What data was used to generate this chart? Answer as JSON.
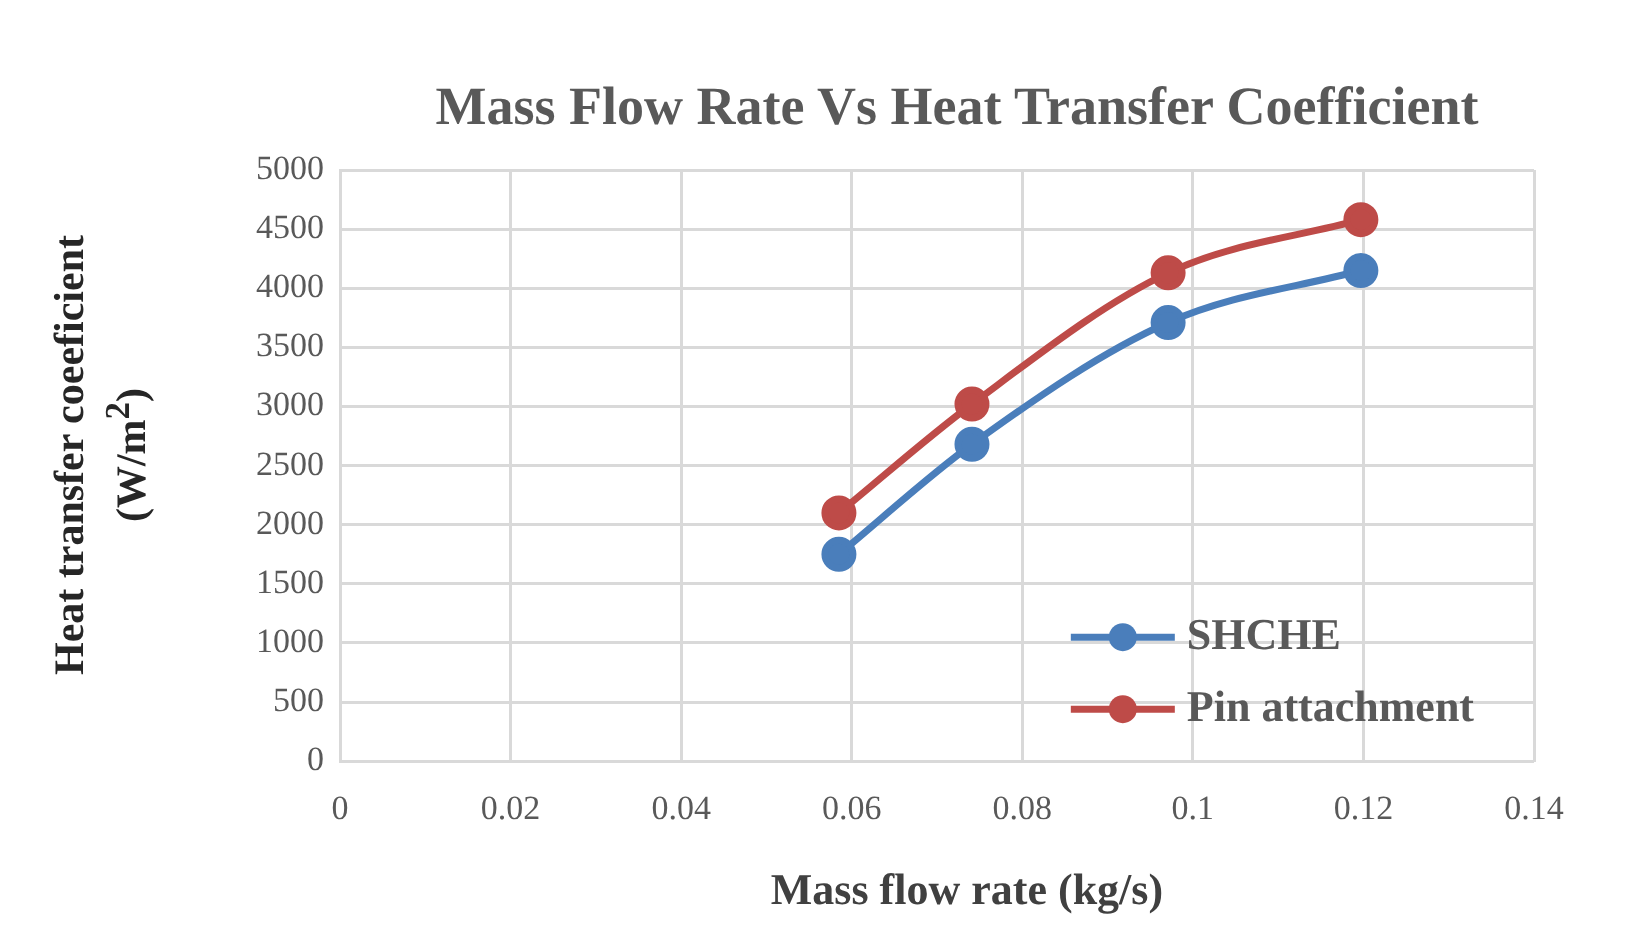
{
  "chart_data": {
    "type": "line",
    "title": "Mass Flow Rate Vs Heat Transfer Coefficient",
    "xlabel": "Mass flow rate (kg/s)",
    "ylabel": "Heat transfer coeeficient (W/m$^{2}$)",
    "x": [
      0.0585,
      0.0741,
      0.0971,
      0.1197
    ],
    "series": [
      {
        "name": "SHCHE",
        "color": "#4a7ebb",
        "values": [
          1750,
          2680,
          3710,
          4150
        ]
      },
      {
        "name": "Pin attachment",
        "color": "#be4b48",
        "values": [
          2100,
          3020,
          4130,
          4580
        ]
      }
    ],
    "xlim": [
      0,
      0.14
    ],
    "xticks": [
      0,
      0.02,
      0.04,
      0.06,
      0.08,
      0.1,
      0.12,
      0.14
    ],
    "ylim": [
      0,
      5000
    ],
    "yticks": [
      0,
      500,
      1000,
      1500,
      2000,
      2500,
      3000,
      3500,
      4000,
      4500,
      5000
    ],
    "grid": true,
    "legend": "bottom right",
    "marker": "circle",
    "line_style": "solid"
  }
}
